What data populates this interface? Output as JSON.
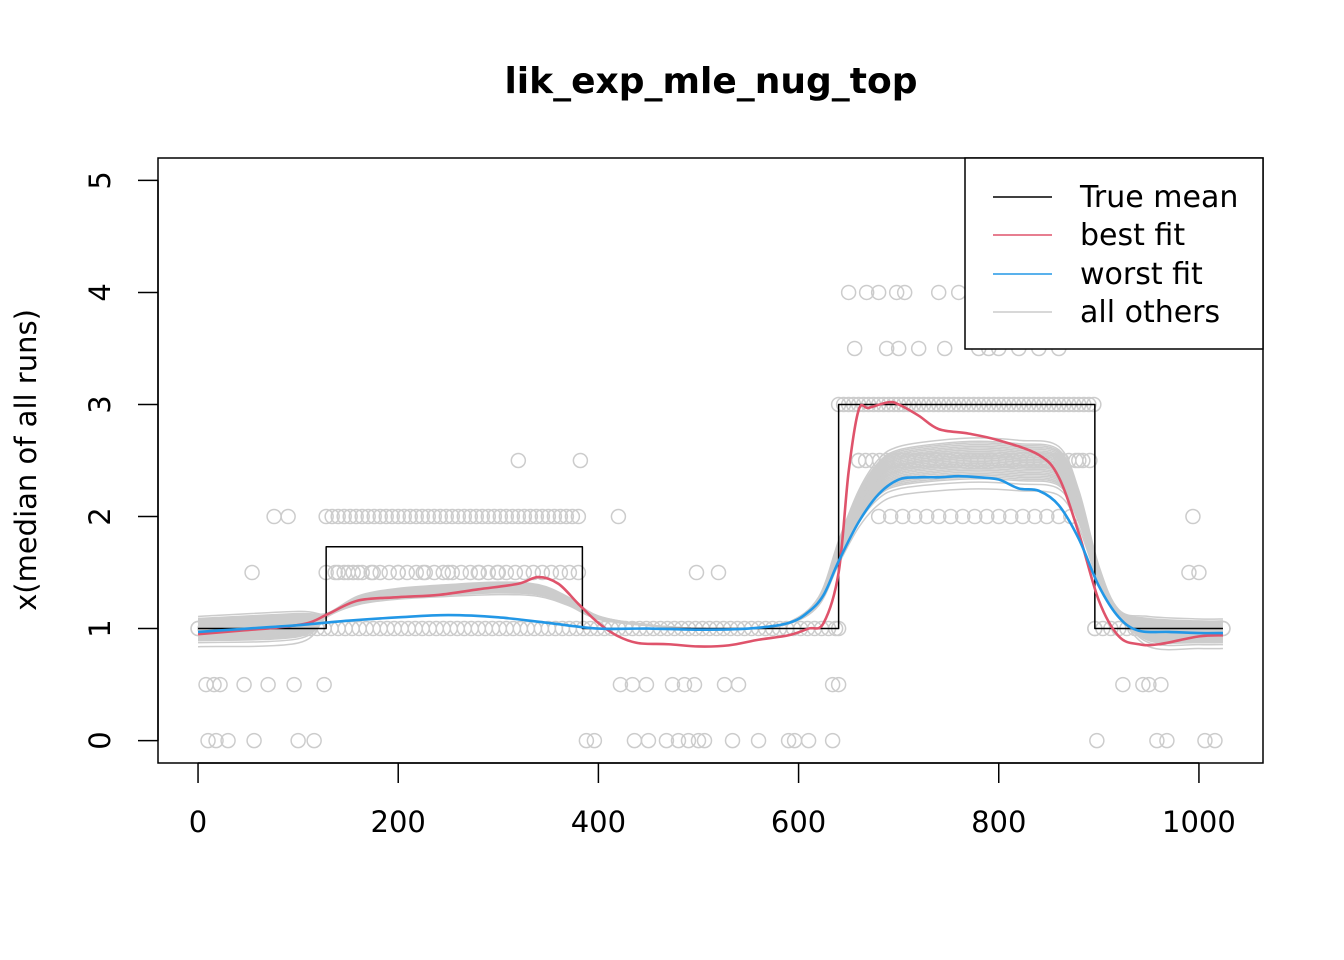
{
  "chart_data": {
    "type": "line",
    "title": "lik_exp_mle_nug_top",
    "xlabel": "",
    "ylabel": "x(median of all runs)",
    "xlim": [
      -40,
      1064
    ],
    "ylim": [
      -0.2,
      5.2
    ],
    "x_ticks": [
      0,
      200,
      400,
      600,
      800,
      1000
    ],
    "y_ticks": [
      0,
      1,
      2,
      3,
      4,
      5
    ],
    "x_tick_labels": [
      "0",
      "200",
      "400",
      "600",
      "800",
      "1000"
    ],
    "y_tick_labels": [
      "0",
      "1",
      "2",
      "3",
      "4",
      "5"
    ],
    "grid": false,
    "legend_position": "top-right",
    "colors": {
      "true_mean": "#000000",
      "best_fit": "#DF536B",
      "worst_fit": "#2297E6",
      "others": "#CCCCCC",
      "points": "#CCCCCC"
    },
    "legend": [
      {
        "label": "True mean",
        "color": "#000000"
      },
      {
        "label": "best fit",
        "color": "#DF536B"
      },
      {
        "label": "worst fit",
        "color": "#2297E6"
      },
      {
        "label": "all others",
        "color": "#CCCCCC"
      }
    ],
    "series": [
      {
        "name": "True mean",
        "role": "true_mean",
        "step": true,
        "x": [
          0,
          128,
          128,
          384,
          384,
          640,
          640,
          896,
          896,
          1024
        ],
        "y": [
          1.0,
          1.0,
          1.73,
          1.73,
          1.0,
          1.0,
          3.0,
          3.0,
          1.0,
          1.0
        ]
      },
      {
        "name": "best fit",
        "role": "best_fit",
        "x": [
          0,
          40,
          80,
          110,
          130,
          160,
          200,
          240,
          280,
          320,
          340,
          360,
          380,
          400,
          420,
          440,
          470,
          500,
          530,
          560,
          590,
          610,
          625,
          640,
          650,
          660,
          670,
          690,
          700,
          720,
          740,
          770,
          800,
          840,
          860,
          880,
          900,
          920,
          940,
          960,
          1000,
          1024
        ],
        "y": [
          0.95,
          0.98,
          1.01,
          1.05,
          1.13,
          1.25,
          1.28,
          1.3,
          1.35,
          1.4,
          1.46,
          1.4,
          1.22,
          1.05,
          0.93,
          0.87,
          0.86,
          0.84,
          0.85,
          0.9,
          0.94,
          1.0,
          1.05,
          1.5,
          2.4,
          2.95,
          2.97,
          3.02,
          3.0,
          2.9,
          2.78,
          2.74,
          2.68,
          2.55,
          2.35,
          1.85,
          1.25,
          0.93,
          0.86,
          0.86,
          0.93,
          0.94
        ]
      },
      {
        "name": "worst fit",
        "role": "worst_fit",
        "x": [
          0,
          50,
          100,
          150,
          200,
          250,
          300,
          350,
          400,
          450,
          500,
          550,
          590,
          610,
          625,
          640,
          660,
          680,
          700,
          720,
          740,
          760,
          780,
          800,
          820,
          840,
          860,
          880,
          900,
          920,
          940,
          970,
          1000,
          1024
        ],
        "y": [
          0.97,
          1.0,
          1.03,
          1.07,
          1.1,
          1.12,
          1.1,
          1.05,
          1.0,
          1.0,
          0.99,
          1.0,
          1.05,
          1.15,
          1.3,
          1.6,
          1.95,
          2.2,
          2.33,
          2.35,
          2.35,
          2.36,
          2.35,
          2.33,
          2.25,
          2.23,
          2.1,
          1.8,
          1.38,
          1.1,
          0.98,
          0.97,
          0.96,
          0.96
        ]
      }
    ],
    "other_runs_template": {
      "x": [
        0,
        100,
        128,
        160,
        200,
        250,
        300,
        340,
        370,
        400,
        450,
        500,
        550,
        590,
        620,
        640,
        660,
        680,
        700,
        740,
        780,
        820,
        860,
        880,
        900,
        920,
        950,
        1000,
        1024
      ],
      "y": [
        1.0,
        1.04,
        1.12,
        1.26,
        1.32,
        1.35,
        1.37,
        1.35,
        1.25,
        1.1,
        1.03,
        1.0,
        1.0,
        1.05,
        1.25,
        1.7,
        2.1,
        2.35,
        2.45,
        2.5,
        2.52,
        2.5,
        2.45,
        2.1,
        1.5,
        1.15,
        1.0,
        0.98,
        0.98
      ]
    },
    "other_runs_scales": [
      0.82,
      0.86,
      0.88,
      0.9,
      0.92,
      0.94,
      0.95,
      0.96,
      0.97,
      0.98,
      0.99,
      1.0,
      1.0,
      1.01,
      1.02,
      1.03,
      1.04,
      1.05,
      1.06,
      1.07,
      1.08,
      1.1,
      1.12,
      0.93,
      0.97,
      1.01,
      1.05,
      0.89,
      0.91,
      1.09
    ],
    "points": [
      {
        "x": 0,
        "y": 1
      },
      {
        "x": 8,
        "y": 0.5
      },
      {
        "x": 10,
        "y": 0
      },
      {
        "x": 16,
        "y": 0.5
      },
      {
        "x": 18,
        "y": 0
      },
      {
        "x": 22,
        "y": 0.5
      },
      {
        "x": 30,
        "y": 0
      },
      {
        "x": 46,
        "y": 0.5
      },
      {
        "x": 54,
        "y": 1.5
      },
      {
        "x": 56,
        "y": 0
      },
      {
        "x": 70,
        "y": 0.5
      },
      {
        "x": 76,
        "y": 2
      },
      {
        "x": 90,
        "y": 2
      },
      {
        "x": 96,
        "y": 0.5
      },
      {
        "x": 100,
        "y": 0
      },
      {
        "x": 116,
        "y": 0
      },
      {
        "x": 126,
        "y": 0.5
      },
      {
        "x": 140,
        "y": 1.5
      },
      {
        "x": 150,
        "y": 1.5
      },
      {
        "x": 160,
        "y": 1.5
      },
      {
        "x": 175,
        "y": 1.5
      },
      {
        "x": 200,
        "y": 1.5
      },
      {
        "x": 225,
        "y": 1.5
      },
      {
        "x": 250,
        "y": 1.5
      },
      {
        "x": 280,
        "y": 1.5
      },
      {
        "x": 300,
        "y": 1.5
      },
      {
        "x": 320,
        "y": 2.5
      },
      {
        "x": 382,
        "y": 2.5
      },
      {
        "x": 388,
        "y": 0
      },
      {
        "x": 396,
        "y": 0
      },
      {
        "x": 420,
        "y": 2
      },
      {
        "x": 422,
        "y": 0.5
      },
      {
        "x": 434,
        "y": 0.5
      },
      {
        "x": 436,
        "y": 0
      },
      {
        "x": 448,
        "y": 0.5
      },
      {
        "x": 450,
        "y": 0
      },
      {
        "x": 468,
        "y": 0
      },
      {
        "x": 474,
        "y": 0.5
      },
      {
        "x": 480,
        "y": 0
      },
      {
        "x": 486,
        "y": 0.5
      },
      {
        "x": 490,
        "y": 0
      },
      {
        "x": 496,
        "y": 0.5
      },
      {
        "x": 498,
        "y": 1.5
      },
      {
        "x": 500,
        "y": 0
      },
      {
        "x": 506,
        "y": 0
      },
      {
        "x": 520,
        "y": 1.5
      },
      {
        "x": 526,
        "y": 0.5
      },
      {
        "x": 534,
        "y": 0
      },
      {
        "x": 540,
        "y": 0.5
      },
      {
        "x": 560,
        "y": 0
      },
      {
        "x": 590,
        "y": 0
      },
      {
        "x": 596,
        "y": 0
      },
      {
        "x": 610,
        "y": 0
      },
      {
        "x": 634,
        "y": 0
      },
      {
        "x": 634,
        "y": 0.5
      },
      {
        "x": 640,
        "y": 0.5
      },
      {
        "x": 640,
        "y": 1
      },
      {
        "x": 650,
        "y": 4
      },
      {
        "x": 656,
        "y": 3.5
      },
      {
        "x": 660,
        "y": 2.5
      },
      {
        "x": 668,
        "y": 4
      },
      {
        "x": 680,
        "y": 4
      },
      {
        "x": 688,
        "y": 3.5
      },
      {
        "x": 698,
        "y": 4
      },
      {
        "x": 700,
        "y": 3.5
      },
      {
        "x": 706,
        "y": 4
      },
      {
        "x": 720,
        "y": 3.5
      },
      {
        "x": 740,
        "y": 4
      },
      {
        "x": 746,
        "y": 3.5
      },
      {
        "x": 760,
        "y": 4
      },
      {
        "x": 780,
        "y": 3.5
      },
      {
        "x": 790,
        "y": 3.5
      },
      {
        "x": 800,
        "y": 3.5
      },
      {
        "x": 820,
        "y": 3.5
      },
      {
        "x": 840,
        "y": 3.5
      },
      {
        "x": 860,
        "y": 3.5
      },
      {
        "x": 880,
        "y": 2.5
      },
      {
        "x": 896,
        "y": 1
      },
      {
        "x": 898,
        "y": 0
      },
      {
        "x": 924,
        "y": 0.5
      },
      {
        "x": 944,
        "y": 0.5
      },
      {
        "x": 950,
        "y": 0.5
      },
      {
        "x": 958,
        "y": 0
      },
      {
        "x": 962,
        "y": 0.5
      },
      {
        "x": 968,
        "y": 0
      },
      {
        "x": 990,
        "y": 1.5
      },
      {
        "x": 994,
        "y": 2
      },
      {
        "x": 1000,
        "y": 1.5
      },
      {
        "x": 1006,
        "y": 0
      },
      {
        "x": 1016,
        "y": 0
      },
      {
        "x": 1024,
        "y": 1
      }
    ],
    "point_bands": [
      {
        "y": 1,
        "from": 0,
        "to": 640,
        "step": 7
      },
      {
        "y": 2,
        "from": 128,
        "to": 384,
        "step": 6
      },
      {
        "y": 1.5,
        "from": 128,
        "to": 384,
        "step": 9
      },
      {
        "y": 3,
        "from": 640,
        "to": 896,
        "step": 5
      },
      {
        "y": 2.5,
        "from": 660,
        "to": 896,
        "step": 7
      },
      {
        "y": 2,
        "from": 680,
        "to": 880,
        "step": 12
      },
      {
        "y": 1,
        "from": 896,
        "to": 1024,
        "step": 8
      }
    ]
  }
}
